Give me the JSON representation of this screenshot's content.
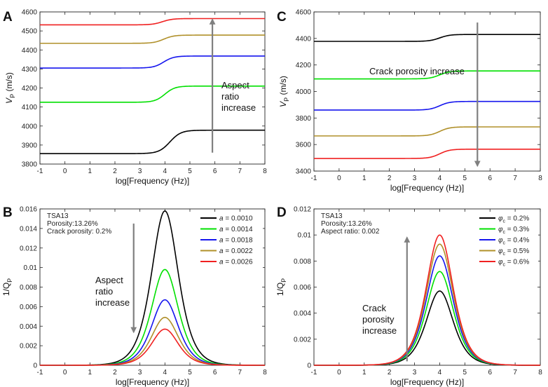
{
  "colors": {
    "black": "#000000",
    "green": "#00e000",
    "blue": "#1515ee",
    "gold": "#b0902a",
    "red": "#f02020",
    "arrow": "#808080"
  },
  "chart_data": [
    {
      "panel": "A",
      "type": "line",
      "xlabel": "log[Frequency (Hz)]",
      "ylabel_main": "V",
      "ylabel_sub": "P",
      "ylabel_unit": " (m/s)",
      "xlim": [
        -1,
        8
      ],
      "ylim": [
        3800,
        4600
      ],
      "xticks": [
        "-1",
        "0",
        "1",
        "2",
        "3",
        "4",
        "5",
        "6",
        "7",
        "8"
      ],
      "yticks": [
        "3800",
        "3900",
        "4000",
        "4100",
        "4200",
        "4300",
        "4400",
        "4500",
        "4600"
      ],
      "annotation": [
        "Aspect",
        "ratio",
        "increase"
      ],
      "arrow": {
        "x": 5.9,
        "from": 3860,
        "to": 4560
      },
      "series": [
        {
          "name": "a = 0.0010",
          "color": "#000000",
          "low": 3855,
          "high": 3978,
          "center": 4.2,
          "width": 0.22
        },
        {
          "name": "a = 0.0014",
          "color": "#00e000",
          "low": 4125,
          "high": 4210,
          "center": 4.0,
          "width": 0.2
        },
        {
          "name": "a = 0.0018",
          "color": "#1515ee",
          "low": 4305,
          "high": 4368,
          "center": 3.95,
          "width": 0.2
        },
        {
          "name": "a = 0.0022",
          "color": "#b0902a",
          "low": 4435,
          "high": 4478,
          "center": 3.95,
          "width": 0.2
        },
        {
          "name": "a = 0.0026",
          "color": "#f02020",
          "low": 4532,
          "high": 4565,
          "center": 3.9,
          "width": 0.2
        }
      ]
    },
    {
      "panel": "B",
      "type": "line",
      "xlabel": "log[Frequency (Hz)]",
      "ylabel_main": "1/Q",
      "ylabel_sub": "P",
      "xlim": [
        -1,
        8
      ],
      "ylim": [
        0,
        0.016
      ],
      "xticks": [
        "-1",
        "0",
        "1",
        "2",
        "3",
        "4",
        "5",
        "6",
        "7",
        "8"
      ],
      "yticks": [
        "0",
        "0.002",
        "0.004",
        "0.006",
        "0.008",
        "0.01",
        "0.012",
        "0.014",
        "0.016"
      ],
      "info": [
        "TSA13",
        "Porosity:13.26%",
        "Crack porosity: 0.2%"
      ],
      "annotation": [
        "Aspect",
        "ratio",
        "increase"
      ],
      "arrow": {
        "x": 2.75,
        "from": 0.0145,
        "to": 0.0034
      },
      "legend_symbol": "a",
      "series": [
        {
          "name": "a = 0.0010",
          "value": " = 0.0010",
          "color": "#000000",
          "peak": 0.0158,
          "center": 4.0,
          "width": 0.6
        },
        {
          "name": "a = 0.0014",
          "value": " = 0.0014",
          "color": "#00e000",
          "peak": 0.0098,
          "center": 4.0,
          "width": 0.6
        },
        {
          "name": "a = 0.0018",
          "value": " = 0.0018",
          "color": "#1515ee",
          "peak": 0.0067,
          "center": 4.0,
          "width": 0.6
        },
        {
          "name": "a = 0.0022",
          "value": " = 0.0022",
          "color": "#b0902a",
          "peak": 0.0049,
          "center": 4.0,
          "width": 0.6
        },
        {
          "name": "a = 0.0026",
          "value": " = 0.0026",
          "color": "#f02020",
          "peak": 0.0037,
          "center": 4.0,
          "width": 0.6
        }
      ]
    },
    {
      "panel": "C",
      "type": "line",
      "xlabel": "log[Frequency (Hz)]",
      "ylabel_main": "V",
      "ylabel_sub": "P",
      "ylabel_unit": " (m/s)",
      "xlim": [
        -1,
        8
      ],
      "ylim": [
        3400,
        4600
      ],
      "xticks": [
        "-1",
        "0",
        "1",
        "2",
        "3",
        "4",
        "5",
        "6",
        "7",
        "8"
      ],
      "yticks": [
        "3400",
        "3600",
        "3800",
        "4000",
        "4200",
        "4400",
        "4600"
      ],
      "annotation": [
        "Crack porosity increase"
      ],
      "arrow": {
        "x": 5.5,
        "from": 4520,
        "to": 3440
      },
      "series": [
        {
          "name": "phi_c = 0.2%",
          "color": "#000000",
          "low": 4378,
          "high": 4430,
          "center": 4.0,
          "width": 0.2
        },
        {
          "name": "phi_c = 0.3%",
          "color": "#00e000",
          "low": 4095,
          "high": 4155,
          "center": 4.0,
          "width": 0.2
        },
        {
          "name": "phi_c = 0.4%",
          "color": "#1515ee",
          "low": 3860,
          "high": 3925,
          "center": 4.0,
          "width": 0.2
        },
        {
          "name": "phi_c = 0.5%",
          "color": "#b0902a",
          "low": 3665,
          "high": 3733,
          "center": 4.0,
          "width": 0.2
        },
        {
          "name": "phi_c = 0.6%",
          "color": "#f02020",
          "low": 3495,
          "high": 3565,
          "center": 4.0,
          "width": 0.2
        }
      ]
    },
    {
      "panel": "D",
      "type": "line",
      "xlabel": "log[Frequency (Hz)]",
      "ylabel_main": "1/Q",
      "ylabel_sub": "P",
      "xlim": [
        -1,
        8
      ],
      "ylim": [
        0,
        0.012
      ],
      "xticks": [
        "-1",
        "0",
        "1",
        "2",
        "3",
        "4",
        "5",
        "6",
        "7",
        "8"
      ],
      "yticks": [
        "0",
        "0.002",
        "0.004",
        "0.006",
        "0.008",
        "0.01",
        "0.012"
      ],
      "info": [
        "TSA13",
        "Porosity:13.26%",
        "Aspect ratio: 0.002"
      ],
      "annotation": [
        "Crack",
        "porosity",
        "increase"
      ],
      "arrow": {
        "x": 2.7,
        "from": 0.0003,
        "to": 0.0098
      },
      "legend_symbol": "φ",
      "legend_subscript": "c",
      "series": [
        {
          "name": "phi_c = 0.2%",
          "value": " = 0.2%",
          "color": "#000000",
          "peak": 0.0057,
          "center": 4.0,
          "width": 0.6
        },
        {
          "name": "phi_c = 0.3%",
          "value": " = 0.3%",
          "color": "#00e000",
          "peak": 0.0072,
          "center": 4.0,
          "width": 0.6
        },
        {
          "name": "phi_c = 0.4%",
          "value": " = 0.4%",
          "color": "#1515ee",
          "peak": 0.0084,
          "center": 4.0,
          "width": 0.6
        },
        {
          "name": "phi_c = 0.5%",
          "value": " = 0.5%",
          "color": "#b0902a",
          "peak": 0.0093,
          "center": 4.0,
          "width": 0.6
        },
        {
          "name": "phi_c = 0.6%",
          "value": " = 0.6%",
          "color": "#f02020",
          "peak": 0.01,
          "center": 4.0,
          "width": 0.6
        }
      ]
    }
  ]
}
